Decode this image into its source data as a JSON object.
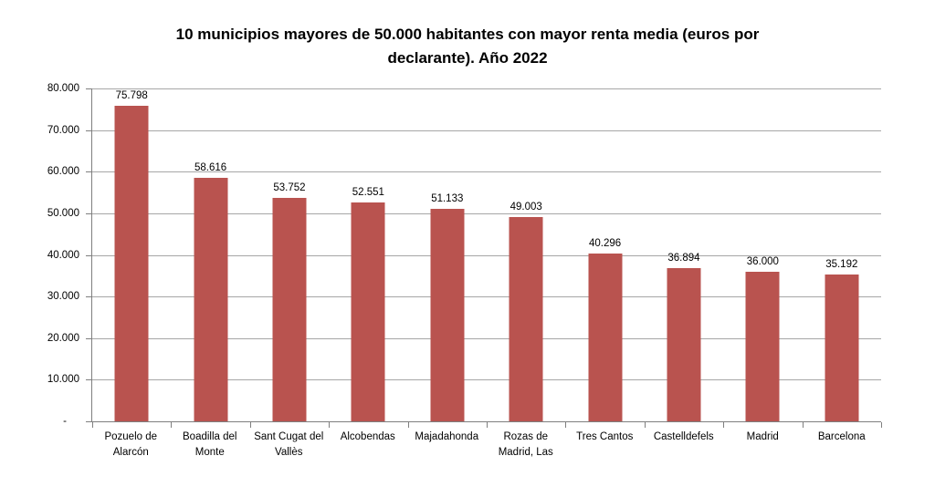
{
  "title_lines": [
    "10 municipios mayores de 50.000 habitantes con mayor renta media (euros por",
    "declarante). Año 2022"
  ],
  "chart_data": {
    "type": "bar",
    "title": "10 municipios mayores de 50.000 habitantes con mayor renta media (euros por declarante). Año 2022",
    "categories": [
      "Pozuelo de Alarcón",
      "Boadilla del Monte",
      "Sant Cugat del Vallès",
      "Alcobendas",
      "Majadahonda",
      "Rozas de Madrid, Las",
      "Tres Cantos",
      "Castelldefels",
      "Madrid",
      "Barcelona"
    ],
    "values": [
      75798,
      58616,
      53752,
      52551,
      51133,
      49003,
      40296,
      36894,
      36000,
      35192
    ],
    "value_labels": [
      "75.798",
      "58.616",
      "53.752",
      "52.551",
      "51.133",
      "49.003",
      "40.296",
      "36.894",
      "36.000",
      "35.192"
    ],
    "xlabel": "",
    "ylabel": "",
    "ylim": [
      0,
      80000
    ],
    "y_tick_step": 10000,
    "y_tick_labels": [
      "80.000",
      "70.000",
      "60.000",
      "50.000",
      "40.000",
      "30.000",
      "20.000",
      "10.000",
      "-"
    ],
    "grid": true,
    "legend": false,
    "colors": {
      "bar": "#B9534F",
      "gridline": "#A6A6A6",
      "axis": "#7F7F7F",
      "text": "#000000",
      "background": "#FFFFFF"
    }
  }
}
